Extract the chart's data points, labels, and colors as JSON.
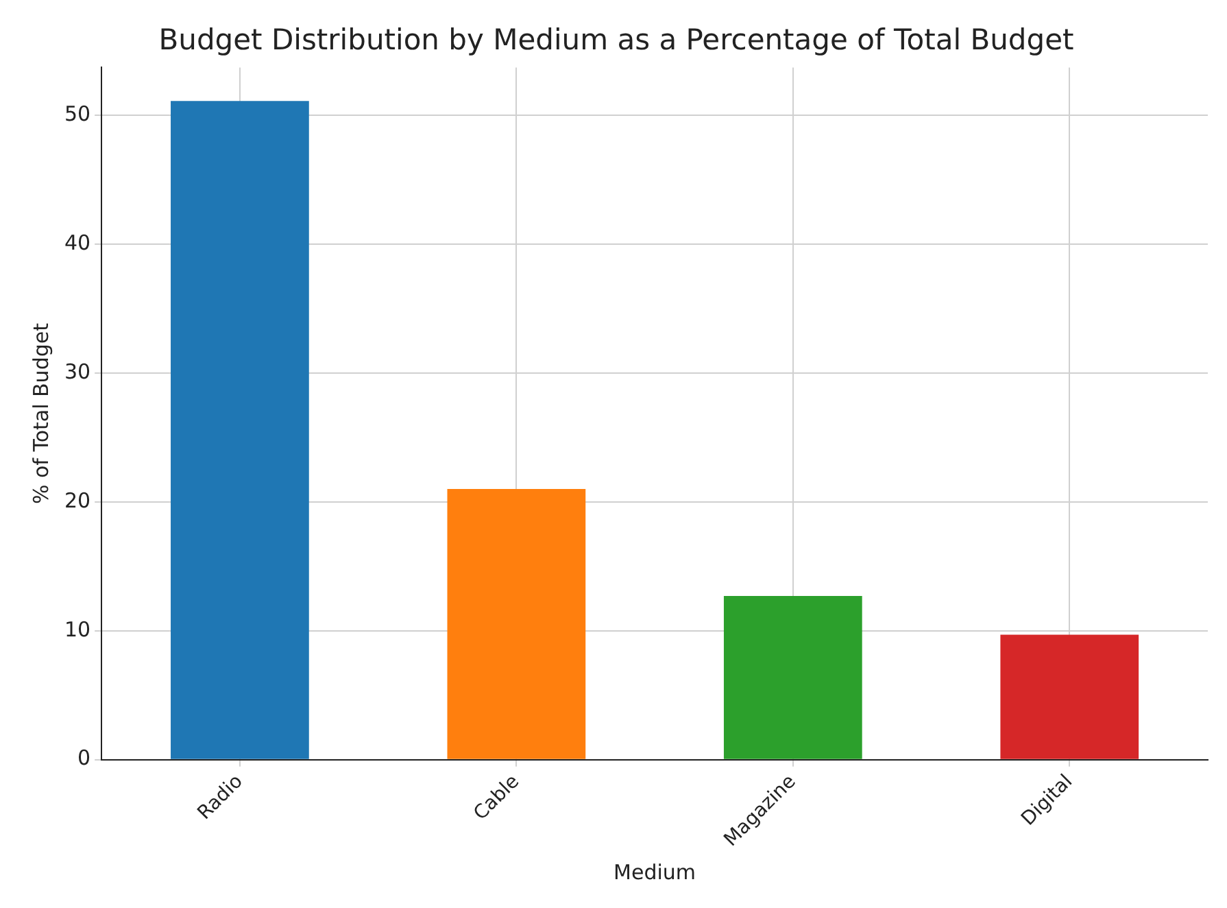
{
  "chart_data": {
    "type": "bar",
    "title": "Budget Distribution by Medium as a Percentage of Total Budget",
    "xlabel": "Medium",
    "ylabel": "% of Total Budget",
    "categories": [
      "Radio",
      "Cable",
      "Magazine",
      "Digital"
    ],
    "values": [
      51.1,
      21.0,
      12.7,
      9.7
    ],
    "colors": [
      "#1f77b4",
      "#ff7f0e",
      "#2ca02c",
      "#d62728"
    ],
    "ylim": [
      0,
      53.7
    ],
    "yticks": [
      0,
      10,
      20,
      30,
      40,
      50
    ],
    "grid": true
  }
}
